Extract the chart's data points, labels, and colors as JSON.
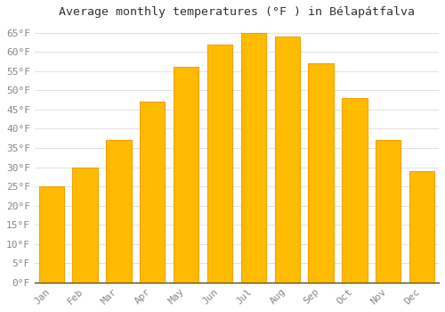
{
  "title": "Average monthly temperatures (°F ) in Bélapátfalva",
  "months": [
    "Jan",
    "Feb",
    "Mar",
    "Apr",
    "May",
    "Jun",
    "Jul",
    "Aug",
    "Sep",
    "Oct",
    "Nov",
    "Dec"
  ],
  "values": [
    25,
    30,
    37,
    47,
    56,
    62,
    65,
    64,
    57,
    48,
    37,
    29
  ],
  "bar_color": "#FFBB00",
  "bar_edge_color": "#F5A000",
  "background_color": "#FFFFFF",
  "grid_color": "#DDDDDD",
  "yticks": [
    0,
    5,
    10,
    15,
    20,
    25,
    30,
    35,
    40,
    45,
    50,
    55,
    60,
    65
  ],
  "ylim": [
    0,
    67
  ],
  "title_fontsize": 9.5,
  "tick_fontsize": 8,
  "tick_color": "#888888",
  "axis_color": "#444444",
  "font_family": "monospace"
}
